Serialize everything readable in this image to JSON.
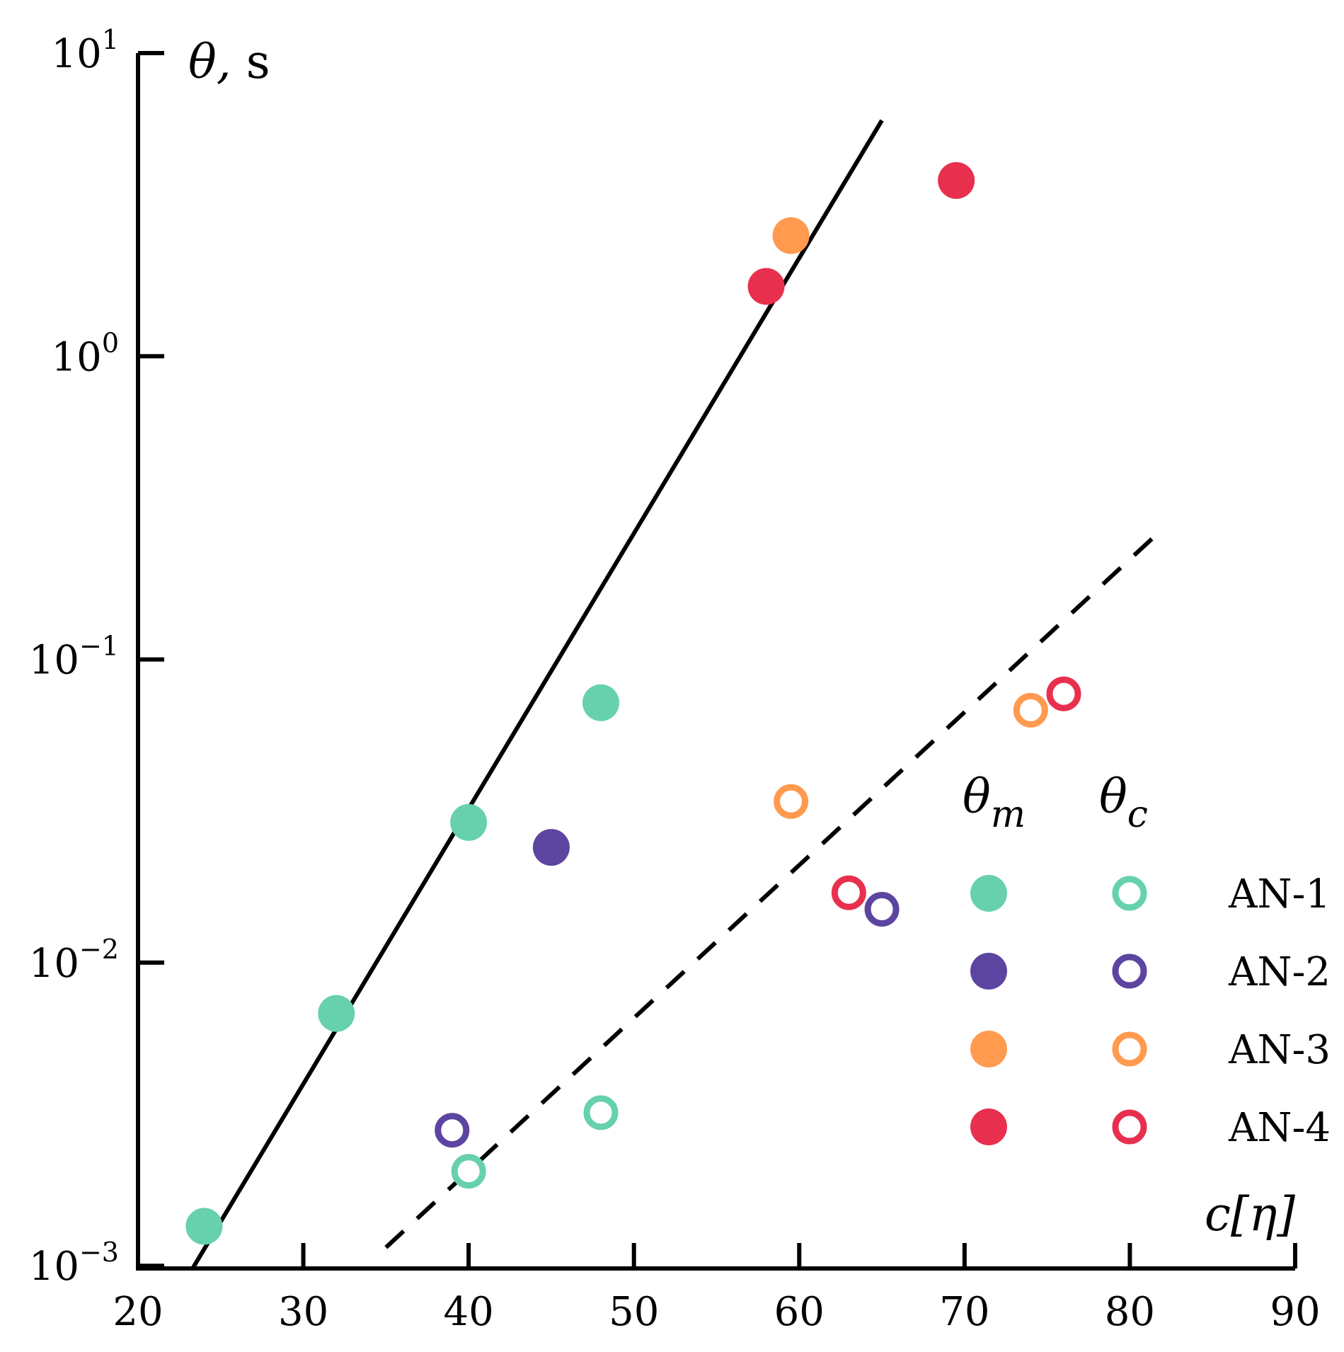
{
  "chart_data": {
    "type": "scatter",
    "title": "",
    "xlabel": "c[η]",
    "ylabel": "θ, s",
    "xlim": [
      20,
      90
    ],
    "ylim": [
      0.00098,
      10
    ],
    "yscale": "log",
    "x_ticks": [
      {
        "value": 20,
        "label": "20"
      },
      {
        "value": 30,
        "label": "30"
      },
      {
        "value": 40,
        "label": "40"
      },
      {
        "value": 50,
        "label": "50"
      },
      {
        "value": 60,
        "label": "60"
      },
      {
        "value": 70,
        "label": "70"
      },
      {
        "value": 80,
        "label": "80"
      },
      {
        "value": 90,
        "label": "90"
      }
    ],
    "y_ticks": [
      {
        "value": 10,
        "base": "10",
        "exp": "1"
      },
      {
        "value": 1,
        "base": "10",
        "exp": "0"
      },
      {
        "value": 0.1,
        "base": "10",
        "exp": "−1"
      },
      {
        "value": 0.01,
        "base": "10",
        "exp": "−2"
      },
      {
        "value": 0.001,
        "base": "10",
        "exp": "−3"
      }
    ],
    "legend": {
      "position": "bottom-right",
      "headers": [
        {
          "base": "θ",
          "sub": "m"
        },
        {
          "base": "θ",
          "sub": "c"
        }
      ]
    },
    "series": [
      {
        "name": "AN-1",
        "color": "#66d1ac",
        "theta_m": {
          "x": [
            24,
            32,
            40,
            48
          ],
          "y": [
            0.00135,
            0.0068,
            0.029,
            0.072
          ]
        },
        "theta_c": {
          "x": [
            40,
            48
          ],
          "y": [
            0.00205,
            0.0032
          ]
        }
      },
      {
        "name": "AN-2",
        "color": "#5c45a0",
        "theta_m": {
          "x": [
            45
          ],
          "y": [
            0.024
          ]
        },
        "theta_c": {
          "x": [
            39,
            65
          ],
          "y": [
            0.0028,
            0.015
          ]
        }
      },
      {
        "name": "AN-3",
        "color": "#ff9a4f",
        "theta_m": {
          "x": [
            59.5
          ],
          "y": [
            2.5
          ]
        },
        "theta_c": {
          "x": [
            59.5,
            74
          ],
          "y": [
            0.034,
            0.068
          ]
        }
      },
      {
        "name": "AN-4",
        "color": "#e8304e",
        "theta_m": {
          "x": [
            58,
            69.5
          ],
          "y": [
            1.7,
            3.8
          ]
        },
        "theta_c": {
          "x": [
            63,
            76
          ],
          "y": [
            0.017,
            0.077
          ]
        }
      }
    ],
    "fit_lines": [
      {
        "name": "theta_m fit",
        "style": "solid",
        "x": [
          23.3,
          65
        ],
        "y": [
          0.00098,
          6.0
        ]
      },
      {
        "name": "theta_c fit",
        "style": "dashed",
        "x": [
          35,
          82
        ],
        "y": [
          0.00115,
          0.27
        ]
      }
    ]
  }
}
